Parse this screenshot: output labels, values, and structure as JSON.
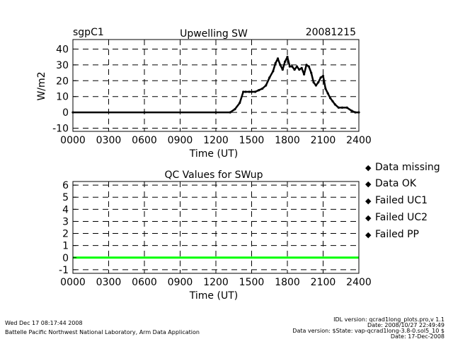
{
  "header": {
    "site": "sgpC1",
    "date": "20081215"
  },
  "chart_data": [
    {
      "type": "line",
      "title": "Upwelling SW",
      "xlabel": "Time (UT)",
      "ylabel": "W/m2",
      "xlim": [
        0,
        2400
      ],
      "ylim": [
        -12,
        46
      ],
      "x_ticks": [
        "0000",
        "0300",
        "0600",
        "0900",
        "1200",
        "1500",
        "1800",
        "2100",
        "2400"
      ],
      "y_ticks": [
        -10,
        0,
        10,
        20,
        30,
        40
      ],
      "grid": true,
      "series": [
        {
          "name": "",
          "color": "#000000",
          "x": [
            0,
            600,
            1200,
            1320,
            1360,
            1400,
            1430,
            1450,
            1480,
            1500,
            1530,
            1560,
            1590,
            1620,
            1650,
            1680,
            1700,
            1720,
            1740,
            1760,
            1780,
            1800,
            1820,
            1840,
            1860,
            1880,
            1900,
            1920,
            1940,
            1960,
            1980,
            2000,
            2020,
            2040,
            2060,
            2080,
            2100,
            2120,
            2140,
            2160,
            2180,
            2200,
            2230,
            2260,
            2300,
            2340,
            2370,
            2400
          ],
          "values": [
            0,
            0,
            0,
            0,
            2,
            6,
            13,
            13,
            13,
            13,
            13,
            14,
            15,
            17,
            22,
            26,
            31,
            34,
            30,
            27,
            32,
            35,
            29,
            29,
            27,
            29,
            27,
            28,
            24,
            30,
            29,
            25,
            19,
            17,
            19,
            22,
            23,
            15,
            12,
            9,
            7,
            5,
            3,
            3,
            3,
            1,
            0,
            0
          ]
        }
      ]
    },
    {
      "type": "line",
      "title": "QC Values for SWup",
      "xlabel": "Time (UT)",
      "ylabel": "",
      "xlim": [
        0,
        2400
      ],
      "ylim": [
        -1.3,
        6.3
      ],
      "x_ticks": [
        "0000",
        "0300",
        "0600",
        "0900",
        "1200",
        "1500",
        "1800",
        "2100",
        "2400"
      ],
      "y_ticks": [
        -1,
        0,
        1,
        2,
        3,
        4,
        5,
        6
      ],
      "grid": true,
      "series": [
        {
          "name": "Data OK",
          "color": "#00ff00",
          "x": [
            0,
            2400
          ],
          "values": [
            0,
            0
          ]
        }
      ]
    }
  ],
  "legend": {
    "placement": "right",
    "items": [
      {
        "label": "Data missing",
        "color": "#000000"
      },
      {
        "label": "Data OK",
        "color": "#00ff00"
      },
      {
        "label": "Failed UC1",
        "color": "#ffff00"
      },
      {
        "label": "Failed UC2",
        "color": "#ff9900"
      },
      {
        "label": "Failed PP",
        "color": "#ff0000"
      }
    ]
  },
  "footer": {
    "timestamp": "Wed Dec 17 08:17:44 2008",
    "lab": "Battelle Pacific Northwest National Laboratory, Arm Data Application",
    "idl_version": "IDL version: qcrad1long_plots.pro,v 1.1",
    "idl_date": "Date: 2008/10/27 22:49:49",
    "data_version": "Data version: $State: vap-qcrad1long-3.8-0.sol5_10 $",
    "data_date": "Date: 17-Dec-2008"
  }
}
